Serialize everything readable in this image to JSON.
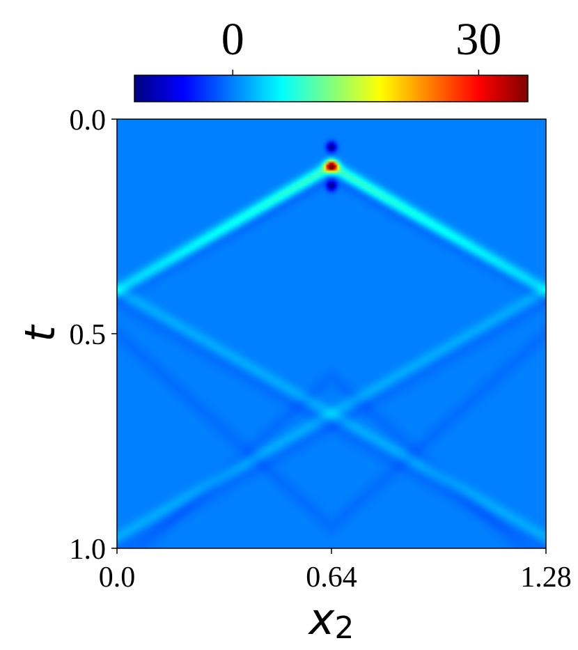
{
  "chart_data": {
    "type": "heatmap",
    "title": "",
    "xlabel": "x",
    "xlabel_subscript": "2",
    "ylabel": "t",
    "xlim": [
      0.0,
      1.28
    ],
    "ylim": [
      0.0,
      1.0
    ],
    "y_inverted": true,
    "x_ticks": [
      "0.0",
      "0.64",
      "1.28"
    ],
    "y_ticks": [
      "0.0",
      "0.5",
      "1.0"
    ],
    "colorbar": {
      "colormap": "jet",
      "orientation": "horizontal",
      "placement": "top",
      "vmin": -12,
      "vmax": 36,
      "ticks": [
        "0",
        "30"
      ],
      "tick_values": [
        0,
        30
      ]
    },
    "background_value": 0,
    "source": {
      "x": 0.64,
      "t": 0.11,
      "peak": 36,
      "flank_min": -12
    },
    "wavefronts": [
      {
        "kind": "direct",
        "slope_t_per_x": 0.45,
        "amplitude": 9
      },
      {
        "kind": "reflected",
        "x_reflect": 0.0,
        "amplitude": 4
      },
      {
        "kind": "reflected",
        "x_reflect": 1.28,
        "amplitude": 4
      },
      {
        "kind": "reflected",
        "x_reflect": -1.28,
        "amplitude": 1.5
      },
      {
        "kind": "reflected",
        "x_reflect": 2.56,
        "amplitude": 1.5
      }
    ]
  }
}
